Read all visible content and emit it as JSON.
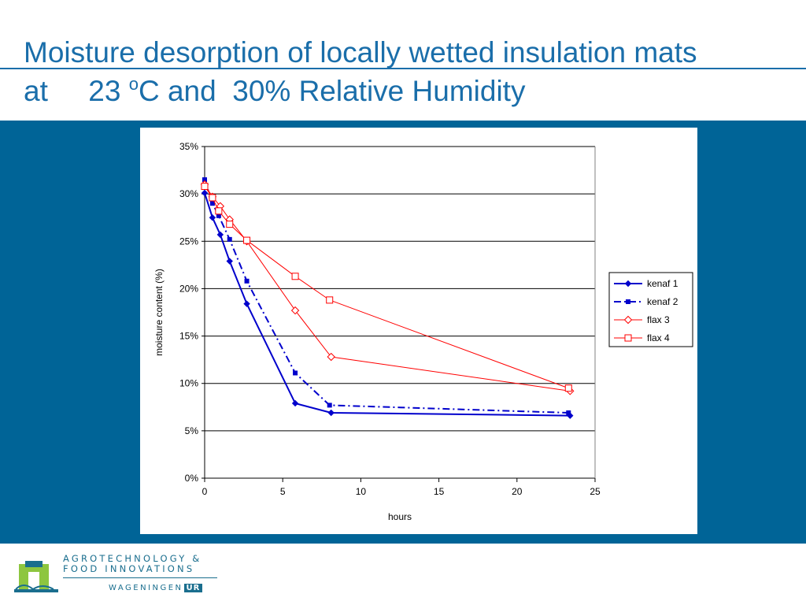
{
  "slide": {
    "title_line1": "Moisture desorption of locally wetted insulation mats",
    "title_line2_pre": "at     23 ",
    "title_line2_sup": "o",
    "title_line2_post": "C and  30% Relative Humidity"
  },
  "colors": {
    "title": "#1a6eaa",
    "band": "#006497",
    "kenaf": "#0000cc",
    "flax": "#ff0000"
  },
  "chart_data": {
    "type": "line",
    "title": "",
    "xlabel": "hours",
    "ylabel": "moisture content (%)",
    "xlim": [
      0,
      25
    ],
    "ylim": [
      0,
      0.35
    ],
    "x_ticks": [
      "0",
      "5",
      "10",
      "15",
      "20",
      "25"
    ],
    "y_ticks": [
      "0%",
      "5%",
      "10%",
      "15%",
      "20%",
      "25%",
      "30%",
      "35%"
    ],
    "grid": "horizontal major gridlines",
    "legend_position": "right",
    "series": [
      {
        "name": "kenaf 1",
        "color": "#0000cc",
        "line": "solid",
        "marker": "diamond-filled",
        "points": [
          [
            0,
            0.301
          ],
          [
            0.5,
            0.275
          ],
          [
            1.0,
            0.257
          ],
          [
            1.6,
            0.229
          ],
          [
            2.7,
            0.184
          ],
          [
            5.8,
            0.079
          ],
          [
            8.1,
            0.069
          ],
          [
            23.4,
            0.066
          ]
        ]
      },
      {
        "name": "kenaf 2",
        "color": "#0000cc",
        "line": "dash-dot",
        "marker": "square-filled",
        "points": [
          [
            0,
            0.315
          ],
          [
            0.5,
            0.29
          ],
          [
            0.9,
            0.277
          ],
          [
            1.6,
            0.252
          ],
          [
            2.7,
            0.208
          ],
          [
            5.8,
            0.111
          ],
          [
            8.0,
            0.077
          ],
          [
            23.3,
            0.069
          ]
        ]
      },
      {
        "name": "flax 3",
        "color": "#ff0000",
        "line": "solid",
        "marker": "diamond-open",
        "points": [
          [
            0,
            0.31
          ],
          [
            0.5,
            0.297
          ],
          [
            1.0,
            0.287
          ],
          [
            1.6,
            0.273
          ],
          [
            2.7,
            0.25
          ],
          [
            5.8,
            0.177
          ],
          [
            8.1,
            0.128
          ],
          [
            23.4,
            0.092
          ]
        ]
      },
      {
        "name": "flax 4",
        "color": "#ff0000",
        "line": "solid",
        "marker": "square-open",
        "points": [
          [
            0,
            0.308
          ],
          [
            0.5,
            0.296
          ],
          [
            0.9,
            0.282
          ],
          [
            1.6,
            0.268
          ],
          [
            2.7,
            0.251
          ],
          [
            5.8,
            0.213
          ],
          [
            8.0,
            0.188
          ],
          [
            23.3,
            0.095
          ]
        ]
      }
    ]
  },
  "footer": {
    "logo_line1": "AGROTECHNOLOGY &",
    "logo_line2": "FOOD INNOVATIONS",
    "logo_sub": "WAGENINGEN",
    "logo_ur": "UR"
  }
}
